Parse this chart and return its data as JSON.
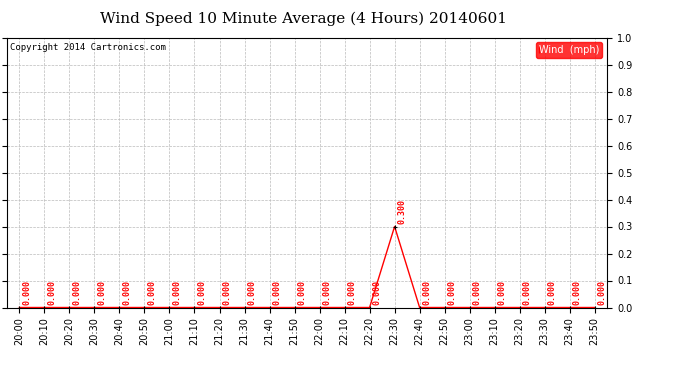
{
  "title": "Wind Speed 10 Minute Average (4 Hours) 20140601",
  "copyright": "Copyright 2014 Cartronics.com",
  "legend_label": "Wind  (mph)",
  "line_color": "#ff0000",
  "background_color": "#ffffff",
  "grid_color": "#bbbbbb",
  "ylim": [
    0.0,
    1.0
  ],
  "yticks": [
    0.0,
    0.1,
    0.2,
    0.3,
    0.4,
    0.5,
    0.6,
    0.7,
    0.8,
    0.9,
    1.0
  ],
  "x_labels": [
    "20:00",
    "20:10",
    "20:20",
    "20:30",
    "20:40",
    "20:50",
    "21:00",
    "21:10",
    "21:20",
    "21:30",
    "21:40",
    "21:50",
    "22:00",
    "22:10",
    "22:20",
    "22:30",
    "22:40",
    "22:50",
    "23:00",
    "23:10",
    "23:20",
    "23:30",
    "23:40",
    "23:50"
  ],
  "values": [
    0.0,
    0.0,
    0.0,
    0.0,
    0.0,
    0.0,
    0.0,
    0.0,
    0.0,
    0.0,
    0.0,
    0.0,
    0.0,
    0.0,
    0.0,
    0.3,
    0.0,
    0.0,
    0.0,
    0.0,
    0.0,
    0.0,
    0.0,
    0.0
  ],
  "title_fontsize": 11,
  "copyright_fontsize": 6.5,
  "annotation_fontsize": 6,
  "legend_fontsize": 7,
  "tick_labelsize": 7
}
